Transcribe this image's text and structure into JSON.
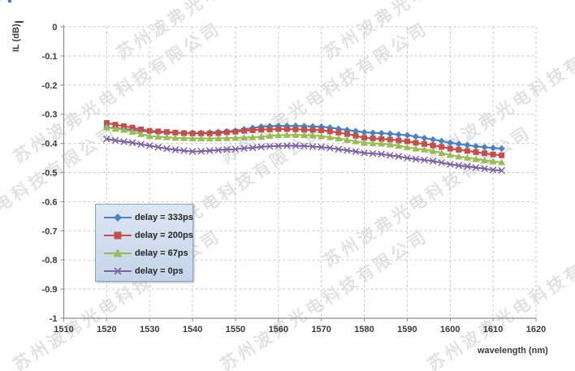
{
  "watermark": {
    "text": "苏州波弗光电科技有限公司"
  },
  "chart_data": {
    "type": "line",
    "title": "",
    "xlabel": "wavelength (nm)",
    "ylabel": "IL (dB)",
    "xlim": [
      1510,
      1620
    ],
    "ylim": [
      -1,
      0
    ],
    "grid": "dashed",
    "legend_position": "inside-left",
    "x_ticks": [
      "1510",
      "1520",
      "1530",
      "1540",
      "1550",
      "1560",
      "1570",
      "1580",
      "1590",
      "1600",
      "1610",
      "1620"
    ],
    "y_ticks": [
      {
        "value": 0,
        "label": "0"
      },
      {
        "value": -0.1,
        "label": "-0.1"
      },
      {
        "value": -0.2,
        "label": "-0.2"
      },
      {
        "value": -0.3,
        "label": "-0.3"
      },
      {
        "value": -0.4,
        "label": "-0.4"
      },
      {
        "value": -0.5,
        "label": "-0.5"
      },
      {
        "value": -0.6,
        "label": "-0.6"
      },
      {
        "value": -0.7,
        "label": "-0.7"
      },
      {
        "value": -0.8,
        "label": "-0.8"
      },
      {
        "value": -0.9,
        "label": "-0.9"
      },
      {
        "value": -1,
        "label": "-1"
      }
    ],
    "x": [
      1520,
      1522,
      1524,
      1526,
      1528,
      1530,
      1532,
      1534,
      1536,
      1538,
      1540,
      1542,
      1544,
      1546,
      1548,
      1550,
      1552,
      1554,
      1556,
      1558,
      1560,
      1562,
      1564,
      1566,
      1568,
      1570,
      1572,
      1574,
      1576,
      1578,
      1580,
      1582,
      1584,
      1586,
      1588,
      1590,
      1592,
      1594,
      1596,
      1598,
      1600,
      1602,
      1604,
      1606,
      1608,
      1610,
      1612
    ],
    "series": [
      {
        "name": "delay = 333ps",
        "color": "#4F81BD",
        "marker": "diamond",
        "values": [
          -0.345,
          -0.348,
          -0.351,
          -0.354,
          -0.357,
          -0.36,
          -0.362,
          -0.363,
          -0.364,
          -0.364,
          -0.364,
          -0.364,
          -0.363,
          -0.361,
          -0.359,
          -0.357,
          -0.352,
          -0.347,
          -0.343,
          -0.341,
          -0.34,
          -0.34,
          -0.34,
          -0.341,
          -0.342,
          -0.343,
          -0.346,
          -0.35,
          -0.354,
          -0.358,
          -0.362,
          -0.364,
          -0.365,
          -0.367,
          -0.37,
          -0.372,
          -0.377,
          -0.382,
          -0.387,
          -0.392,
          -0.398,
          -0.402,
          -0.406,
          -0.41,
          -0.413,
          -0.416,
          -0.418
        ]
      },
      {
        "name": "delay = 200ps",
        "color": "#C0504D",
        "marker": "square",
        "values": [
          -0.33,
          -0.336,
          -0.341,
          -0.346,
          -0.352,
          -0.357,
          -0.359,
          -0.361,
          -0.363,
          -0.365,
          -0.366,
          -0.366,
          -0.366,
          -0.365,
          -0.362,
          -0.36,
          -0.357,
          -0.355,
          -0.353,
          -0.352,
          -0.351,
          -0.351,
          -0.352,
          -0.353,
          -0.354,
          -0.355,
          -0.359,
          -0.363,
          -0.368,
          -0.374,
          -0.381,
          -0.383,
          -0.385,
          -0.387,
          -0.39,
          -0.393,
          -0.398,
          -0.402,
          -0.407,
          -0.412,
          -0.418,
          -0.422,
          -0.426,
          -0.43,
          -0.434,
          -0.438,
          -0.441
        ]
      },
      {
        "name": "delay  = 67ps",
        "color": "#9BBB59",
        "marker": "triangle",
        "values": [
          -0.345,
          -0.35,
          -0.354,
          -0.36,
          -0.368,
          -0.375,
          -0.377,
          -0.379,
          -0.381,
          -0.382,
          -0.383,
          -0.383,
          -0.383,
          -0.383,
          -0.382,
          -0.381,
          -0.38,
          -0.379,
          -0.377,
          -0.374,
          -0.372,
          -0.371,
          -0.371,
          -0.372,
          -0.373,
          -0.375,
          -0.379,
          -0.383,
          -0.388,
          -0.393,
          -0.398,
          -0.4,
          -0.401,
          -0.404,
          -0.408,
          -0.413,
          -0.418,
          -0.421,
          -0.426,
          -0.433,
          -0.44,
          -0.445,
          -0.449,
          -0.454,
          -0.458,
          -0.462,
          -0.465
        ]
      },
      {
        "name": "delay = 0ps",
        "color": "#8064A2",
        "marker": "x",
        "values": [
          -0.385,
          -0.39,
          -0.394,
          -0.398,
          -0.403,
          -0.408,
          -0.413,
          -0.418,
          -0.422,
          -0.425,
          -0.428,
          -0.427,
          -0.425,
          -0.423,
          -0.421,
          -0.42,
          -0.417,
          -0.415,
          -0.412,
          -0.41,
          -0.409,
          -0.408,
          -0.408,
          -0.409,
          -0.411,
          -0.413,
          -0.416,
          -0.42,
          -0.424,
          -0.428,
          -0.433,
          -0.435,
          -0.437,
          -0.441,
          -0.445,
          -0.45,
          -0.454,
          -0.457,
          -0.461,
          -0.466,
          -0.472,
          -0.476,
          -0.479,
          -0.483,
          -0.487,
          -0.491,
          -0.493
        ]
      }
    ]
  }
}
